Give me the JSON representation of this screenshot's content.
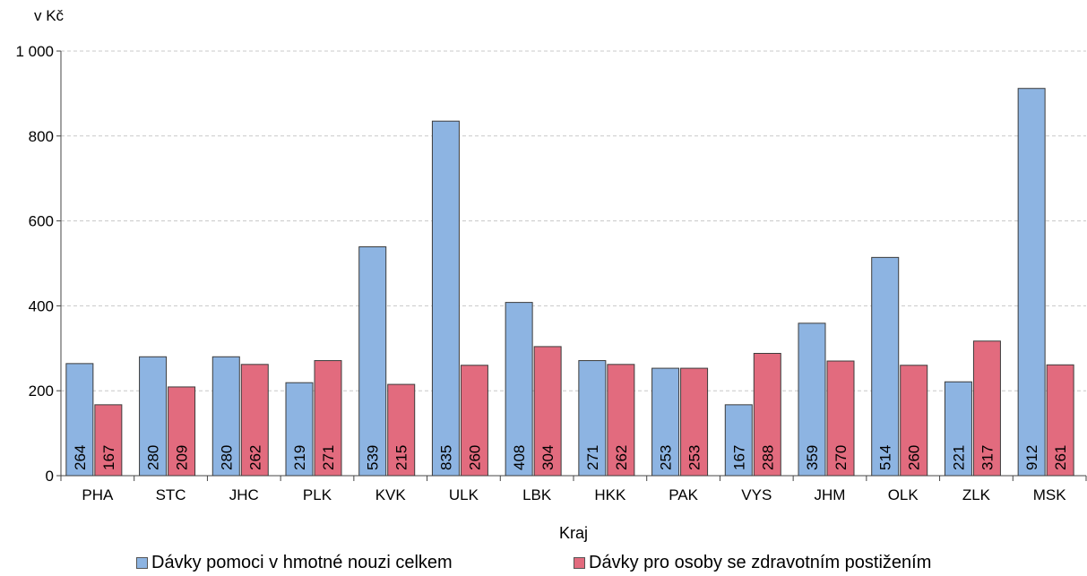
{
  "chart_data": {
    "type": "bar",
    "title": "",
    "unit_label": "v Kč",
    "xlabel": "Kraj",
    "ylabel": "",
    "ylim": [
      0,
      1000
    ],
    "yticks": [
      0,
      200,
      400,
      600,
      800,
      1000
    ],
    "ytick_labels": [
      "0",
      "200",
      "400",
      "600",
      "800",
      "1 000"
    ],
    "grid": true,
    "legend_position": "bottom",
    "categories": [
      "PHA",
      "STC",
      "JHC",
      "PLK",
      "KVK",
      "ULK",
      "LBK",
      "HKK",
      "PAK",
      "VYS",
      "JHM",
      "OLK",
      "ZLK",
      "MSK"
    ],
    "series": [
      {
        "name": "Dávky pomoci v hmotné nouzi celkem",
        "color": "#8DB4E2",
        "values": [
          264,
          280,
          280,
          219,
          539,
          835,
          408,
          271,
          253,
          167,
          359,
          514,
          221,
          912
        ]
      },
      {
        "name": "Dávky pro osoby se zdravotním postižením",
        "color": "#E26B7E",
        "values": [
          167,
          209,
          262,
          271,
          215,
          260,
          304,
          262,
          253,
          288,
          270,
          260,
          317,
          261
        ]
      }
    ]
  }
}
